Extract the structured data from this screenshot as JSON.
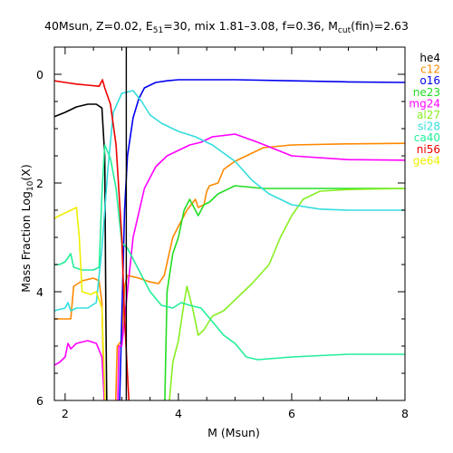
{
  "chart_data": {
    "type": "line",
    "title": {
      "mass": "40Msun",
      "Z": "Z=0.02",
      "E_main": "E",
      "E_sub": "51",
      "E_tail": "=30",
      "mix": "mix 1.81–3.08",
      "f": "f=0.36",
      "M_main": "M",
      "M_sub": "cut",
      "M_tail": "(fin)=2.63"
    },
    "xlabel": "M (Msun)",
    "ylabel": {
      "main": "Mass Fraction Log",
      "sub": "10",
      "tail": "(X)"
    },
    "xlim": [
      1.81,
      8.0
    ],
    "ylim": [
      -6,
      0.5
    ],
    "x_ticks": [
      "2",
      "4",
      "6",
      "8"
    ],
    "y_ticks": [
      "0",
      "2",
      "4",
      "6"
    ],
    "mass_cut": 3.08,
    "legend_position": "right",
    "series": [
      {
        "name": "he4",
        "color": "#000000",
        "points": [
          [
            1.81,
            -0.78
          ],
          [
            2.0,
            -0.7
          ],
          [
            2.2,
            -0.6
          ],
          [
            2.4,
            -0.55
          ],
          [
            2.55,
            -0.55
          ],
          [
            2.65,
            -0.62
          ],
          [
            2.7,
            -1.5
          ],
          [
            2.72,
            -4.5
          ],
          [
            2.74,
            -6.5
          ]
        ]
      },
      {
        "name": "c12",
        "color": "#ff8800",
        "points": [
          [
            1.81,
            -4.5
          ],
          [
            2.0,
            -4.5
          ],
          [
            2.1,
            -4.5
          ],
          [
            2.15,
            -3.9
          ],
          [
            2.3,
            -3.8
          ],
          [
            2.5,
            -3.75
          ],
          [
            2.6,
            -3.8
          ],
          [
            2.65,
            -4.2
          ],
          [
            2.7,
            -6.5
          ],
          [
            2.88,
            -6.5
          ],
          [
            2.92,
            -5.0
          ],
          [
            3.0,
            -4.9
          ],
          [
            3.05,
            -3.9
          ],
          [
            3.1,
            -3.7
          ],
          [
            3.3,
            -3.75
          ],
          [
            3.5,
            -3.82
          ],
          [
            3.65,
            -3.85
          ],
          [
            3.75,
            -3.7
          ],
          [
            3.9,
            -3.0
          ],
          [
            4.0,
            -2.8
          ],
          [
            4.15,
            -2.5
          ],
          [
            4.3,
            -2.3
          ],
          [
            4.35,
            -2.45
          ],
          [
            4.45,
            -2.4
          ],
          [
            4.5,
            -2.15
          ],
          [
            4.55,
            -2.05
          ],
          [
            4.7,
            -2.0
          ],
          [
            4.8,
            -1.75
          ],
          [
            5.0,
            -1.6
          ],
          [
            5.3,
            -1.45
          ],
          [
            5.5,
            -1.35
          ],
          [
            6.0,
            -1.3
          ],
          [
            7.0,
            -1.28
          ],
          [
            8.0,
            -1.27
          ]
        ]
      },
      {
        "name": "o16",
        "color": "#0000ee",
        "points": [
          [
            2.95,
            -6.5
          ],
          [
            3.0,
            -4.5
          ],
          [
            3.05,
            -2.5
          ],
          [
            3.1,
            -1.5
          ],
          [
            3.2,
            -0.8
          ],
          [
            3.3,
            -0.45
          ],
          [
            3.4,
            -0.25
          ],
          [
            3.6,
            -0.15
          ],
          [
            3.8,
            -0.12
          ],
          [
            4.0,
            -0.1
          ],
          [
            5.0,
            -0.1
          ],
          [
            6.0,
            -0.12
          ],
          [
            7.0,
            -0.14
          ],
          [
            8.0,
            -0.15
          ]
        ]
      },
      {
        "name": "ne23",
        "color": "#22dd22",
        "points": [
          [
            3.75,
            -6.5
          ],
          [
            3.8,
            -4.0
          ],
          [
            3.9,
            -3.3
          ],
          [
            4.0,
            -3.0
          ],
          [
            4.1,
            -2.5
          ],
          [
            4.2,
            -2.3
          ],
          [
            4.35,
            -2.6
          ],
          [
            4.45,
            -2.4
          ],
          [
            4.55,
            -2.35
          ],
          [
            4.7,
            -2.2
          ],
          [
            5.0,
            -2.05
          ],
          [
            5.5,
            -2.1
          ],
          [
            6.0,
            -2.1
          ],
          [
            7.0,
            -2.1
          ],
          [
            8.0,
            -2.1
          ]
        ]
      },
      {
        "name": "mg24",
        "color": "#ff00ff",
        "points": [
          [
            1.81,
            -5.35
          ],
          [
            1.9,
            -5.3
          ],
          [
            2.0,
            -5.2
          ],
          [
            2.05,
            -4.95
          ],
          [
            2.1,
            -5.05
          ],
          [
            2.2,
            -4.95
          ],
          [
            2.4,
            -4.9
          ],
          [
            2.55,
            -4.95
          ],
          [
            2.65,
            -5.2
          ],
          [
            2.72,
            -6.5
          ],
          [
            2.92,
            -6.5
          ],
          [
            2.95,
            -5.0
          ],
          [
            3.0,
            -5.0
          ],
          [
            3.05,
            -4.5
          ],
          [
            3.2,
            -3.0
          ],
          [
            3.4,
            -2.1
          ],
          [
            3.6,
            -1.7
          ],
          [
            3.8,
            -1.5
          ],
          [
            4.0,
            -1.4
          ],
          [
            4.2,
            -1.3
          ],
          [
            4.4,
            -1.25
          ],
          [
            4.6,
            -1.15
          ],
          [
            5.0,
            -1.1
          ],
          [
            5.4,
            -1.25
          ],
          [
            6.0,
            -1.5
          ],
          [
            7.0,
            -1.57
          ],
          [
            8.0,
            -1.58
          ]
        ]
      },
      {
        "name": "al27",
        "color": "#88ee22",
        "points": [
          [
            3.8,
            -6.5
          ],
          [
            3.9,
            -5.3
          ],
          [
            4.0,
            -4.9
          ],
          [
            4.1,
            -4.2
          ],
          [
            4.15,
            -3.9
          ],
          [
            4.25,
            -4.3
          ],
          [
            4.35,
            -4.8
          ],
          [
            4.45,
            -4.7
          ],
          [
            4.6,
            -4.45
          ],
          [
            4.8,
            -4.35
          ],
          [
            5.0,
            -4.15
          ],
          [
            5.3,
            -3.85
          ],
          [
            5.6,
            -3.5
          ],
          [
            5.8,
            -3.0
          ],
          [
            6.0,
            -2.6
          ],
          [
            6.2,
            -2.3
          ],
          [
            6.5,
            -2.15
          ],
          [
            7.0,
            -2.12
          ],
          [
            8.0,
            -2.1
          ]
        ]
      },
      {
        "name": "si28",
        "color": "#33dddd",
        "points": [
          [
            1.81,
            -4.35
          ],
          [
            2.0,
            -4.3
          ],
          [
            2.05,
            -4.2
          ],
          [
            2.1,
            -4.35
          ],
          [
            2.2,
            -4.3
          ],
          [
            2.4,
            -4.3
          ],
          [
            2.55,
            -4.2
          ],
          [
            2.65,
            -3.2
          ],
          [
            2.75,
            -1.8
          ],
          [
            2.85,
            -0.7
          ],
          [
            3.0,
            -0.35
          ],
          [
            3.2,
            -0.3
          ],
          [
            3.35,
            -0.5
          ],
          [
            3.5,
            -0.75
          ],
          [
            3.7,
            -0.9
          ],
          [
            4.0,
            -1.05
          ],
          [
            4.3,
            -1.15
          ],
          [
            4.6,
            -1.3
          ],
          [
            5.0,
            -1.6
          ],
          [
            5.3,
            -1.95
          ],
          [
            5.6,
            -2.2
          ],
          [
            6.0,
            -2.4
          ],
          [
            6.5,
            -2.48
          ],
          [
            7.0,
            -2.5
          ],
          [
            8.0,
            -2.5
          ]
        ]
      },
      {
        "name": "ca40",
        "color": "#22ee99",
        "points": [
          [
            1.81,
            -3.5
          ],
          [
            1.9,
            -3.5
          ],
          [
            2.0,
            -3.45
          ],
          [
            2.1,
            -3.3
          ],
          [
            2.15,
            -3.55
          ],
          [
            2.3,
            -3.6
          ],
          [
            2.5,
            -3.6
          ],
          [
            2.6,
            -3.55
          ],
          [
            2.65,
            -2.2
          ],
          [
            2.7,
            -1.3
          ],
          [
            2.8,
            -1.55
          ],
          [
            2.9,
            -2.1
          ],
          [
            3.0,
            -3.1
          ],
          [
            3.1,
            -3.2
          ],
          [
            3.3,
            -3.6
          ],
          [
            3.5,
            -4.0
          ],
          [
            3.7,
            -4.25
          ],
          [
            3.9,
            -4.3
          ],
          [
            4.05,
            -4.2
          ],
          [
            4.2,
            -4.25
          ],
          [
            4.4,
            -4.3
          ],
          [
            4.6,
            -4.55
          ],
          [
            4.8,
            -4.8
          ],
          [
            5.0,
            -4.95
          ],
          [
            5.2,
            -5.2
          ],
          [
            5.4,
            -5.25
          ],
          [
            6.0,
            -5.2
          ],
          [
            7.0,
            -5.15
          ],
          [
            8.0,
            -5.15
          ]
        ]
      },
      {
        "name": "ni56",
        "color": "#ee0000",
        "points": [
          [
            1.81,
            -0.12
          ],
          [
            2.0,
            -0.15
          ],
          [
            2.2,
            -0.18
          ],
          [
            2.4,
            -0.2
          ],
          [
            2.6,
            -0.22
          ],
          [
            2.66,
            -0.1
          ],
          [
            2.7,
            -0.25
          ],
          [
            2.8,
            -0.55
          ],
          [
            2.9,
            -1.3
          ],
          [
            3.0,
            -3.0
          ],
          [
            3.05,
            -4.5
          ],
          [
            3.15,
            -6.5
          ]
        ]
      },
      {
        "name": "ge64",
        "color": "#eeee00",
        "points": [
          [
            1.81,
            -2.65
          ],
          [
            1.9,
            -2.6
          ],
          [
            2.0,
            -2.55
          ],
          [
            2.1,
            -2.5
          ],
          [
            2.2,
            -2.45
          ],
          [
            2.25,
            -3.0
          ],
          [
            2.3,
            -4.0
          ],
          [
            2.45,
            -4.05
          ],
          [
            2.55,
            -4.0
          ],
          [
            2.65,
            -4.3
          ],
          [
            2.72,
            -6.5
          ]
        ]
      }
    ]
  }
}
